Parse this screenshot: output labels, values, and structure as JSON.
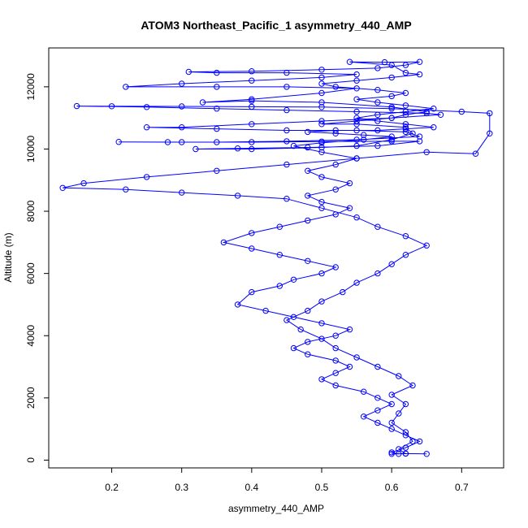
{
  "chart_data": {
    "type": "line",
    "title": "ATOM3 Northeast_Pacific_1 asymmetry_440_AMP",
    "xlabel": "asymmetry_440_AMP",
    "ylabel": "Altitude (m)",
    "xlim": [
      0.11,
      0.76
    ],
    "ylim": [
      -250,
      13250
    ],
    "xticks": [
      0.2,
      0.3,
      0.4,
      0.5,
      0.6,
      0.7
    ],
    "xtick_labels": [
      "0.2",
      "0.3",
      "0.4",
      "0.5",
      "0.6",
      "0.7"
    ],
    "yticks": [
      0,
      2000,
      4000,
      6000,
      8000,
      10000,
      12000
    ],
    "ytick_labels": [
      "0",
      "2000",
      "4000",
      "6000",
      "8000",
      "10000",
      "12000"
    ],
    "grid": false,
    "legend": "none",
    "markers": "open circles connected by lines",
    "color": "#0000ff",
    "series": [
      {
        "values": [
          [
            0.6,
            200
          ],
          [
            0.62,
            210
          ],
          [
            0.61,
            350
          ],
          [
            0.63,
            600
          ],
          [
            0.62,
            900
          ],
          [
            0.6,
            1200
          ],
          [
            0.61,
            1500
          ],
          [
            0.62,
            1800
          ],
          [
            0.6,
            2100
          ],
          [
            0.63,
            2400
          ],
          [
            0.61,
            2700
          ],
          [
            0.58,
            3000
          ],
          [
            0.55,
            3300
          ],
          [
            0.52,
            3600
          ],
          [
            0.5,
            3900
          ],
          [
            0.47,
            4200
          ],
          [
            0.45,
            4500
          ],
          [
            0.48,
            4800
          ],
          [
            0.5,
            5100
          ],
          [
            0.53,
            5400
          ],
          [
            0.55,
            5700
          ],
          [
            0.58,
            6000
          ],
          [
            0.6,
            6300
          ],
          [
            0.62,
            6600
          ],
          [
            0.65,
            6900
          ],
          [
            0.62,
            7200
          ],
          [
            0.58,
            7500
          ],
          [
            0.55,
            7800
          ],
          [
            0.5,
            8100
          ],
          [
            0.45,
            8400
          ],
          [
            0.38,
            8500
          ],
          [
            0.3,
            8600
          ],
          [
            0.22,
            8700
          ],
          [
            0.13,
            8750
          ],
          [
            0.16,
            8900
          ],
          [
            0.25,
            9100
          ],
          [
            0.35,
            9300
          ],
          [
            0.45,
            9500
          ],
          [
            0.55,
            9700
          ],
          [
            0.65,
            9900
          ],
          [
            0.72,
            9850
          ],
          [
            0.74,
            10500
          ],
          [
            0.74,
            11150
          ],
          [
            0.7,
            11200
          ],
          [
            0.6,
            11300
          ],
          [
            0.5,
            11350
          ],
          [
            0.4,
            11360
          ],
          [
            0.3,
            11370
          ],
          [
            0.2,
            11375
          ],
          [
            0.15,
            11380
          ],
          [
            0.25,
            11350
          ],
          [
            0.35,
            11300
          ],
          [
            0.45,
            11250
          ],
          [
            0.55,
            11200
          ],
          [
            0.65,
            11150
          ],
          [
            0.67,
            11100
          ],
          [
            0.6,
            11000
          ],
          [
            0.5,
            10900
          ],
          [
            0.4,
            10800
          ],
          [
            0.3,
            10700
          ],
          [
            0.25,
            10700
          ],
          [
            0.35,
            10650
          ],
          [
            0.45,
            10600
          ],
          [
            0.55,
            10600
          ],
          [
            0.62,
            10550
          ],
          [
            0.64,
            10400
          ],
          [
            0.55,
            10300
          ],
          [
            0.45,
            10250
          ],
          [
            0.35,
            10220
          ],
          [
            0.28,
            10220
          ],
          [
            0.21,
            10230
          ],
          [
            0.3,
            10220
          ],
          [
            0.4,
            10220
          ],
          [
            0.5,
            10240
          ],
          [
            0.6,
            10250
          ],
          [
            0.64,
            10250
          ],
          [
            0.58,
            10100
          ],
          [
            0.48,
            10050
          ],
          [
            0.38,
            10020
          ],
          [
            0.32,
            10000
          ],
          [
            0.4,
            10000
          ],
          [
            0.5,
            10050
          ],
          [
            0.55,
            10100
          ],
          [
            0.6,
            10300
          ],
          [
            0.63,
            10500
          ],
          [
            0.62,
            10700
          ],
          [
            0.55,
            10800
          ],
          [
            0.5,
            10800
          ],
          [
            0.55,
            10900
          ],
          [
            0.6,
            11000
          ],
          [
            0.62,
            11100
          ],
          [
            0.65,
            11200
          ],
          [
            0.6,
            11350
          ],
          [
            0.5,
            11500
          ],
          [
            0.4,
            11550
          ],
          [
            0.33,
            11500
          ],
          [
            0.4,
            11600
          ],
          [
            0.5,
            11800
          ],
          [
            0.55,
            11950
          ],
          [
            0.45,
            12000
          ],
          [
            0.35,
            12000
          ],
          [
            0.22,
            12000
          ],
          [
            0.3,
            12100
          ],
          [
            0.4,
            12200
          ],
          [
            0.5,
            12300
          ],
          [
            0.55,
            12400
          ],
          [
            0.45,
            12450
          ],
          [
            0.35,
            12450
          ],
          [
            0.31,
            12480
          ],
          [
            0.4,
            12500
          ],
          [
            0.5,
            12550
          ],
          [
            0.58,
            12600
          ],
          [
            0.62,
            12700
          ],
          [
            0.64,
            12800
          ],
          [
            0.59,
            12790
          ],
          [
            0.54,
            12800
          ],
          [
            0.6,
            12700
          ],
          [
            0.62,
            12450
          ],
          [
            0.64,
            12400
          ],
          [
            0.6,
            12300
          ],
          [
            0.55,
            12200
          ],
          [
            0.5,
            12100
          ],
          [
            0.52,
            12000
          ],
          [
            0.58,
            11900
          ],
          [
            0.62,
            11800
          ],
          [
            0.6,
            11700
          ],
          [
            0.55,
            11600
          ],
          [
            0.58,
            11500
          ],
          [
            0.62,
            11400
          ],
          [
            0.66,
            11300
          ],
          [
            0.62,
            11200
          ],
          [
            0.58,
            11100
          ],
          [
            0.55,
            11000
          ],
          [
            0.58,
            10900
          ],
          [
            0.62,
            10800
          ],
          [
            0.66,
            10700
          ],
          [
            0.62,
            10650
          ],
          [
            0.58,
            10600
          ],
          [
            0.52,
            10600
          ],
          [
            0.48,
            10550
          ],
          [
            0.52,
            10500
          ],
          [
            0.56,
            10450
          ],
          [
            0.6,
            10400
          ],
          [
            0.56,
            10300
          ],
          [
            0.5,
            10200
          ],
          [
            0.46,
            10100
          ],
          [
            0.5,
            9900
          ],
          [
            0.55,
            9700
          ],
          [
            0.52,
            9500
          ],
          [
            0.48,
            9300
          ],
          [
            0.5,
            9100
          ],
          [
            0.54,
            8900
          ],
          [
            0.52,
            8700
          ],
          [
            0.48,
            8500
          ],
          [
            0.5,
            8300
          ],
          [
            0.54,
            8100
          ],
          [
            0.52,
            7900
          ],
          [
            0.48,
            7700
          ],
          [
            0.44,
            7500
          ],
          [
            0.4,
            7300
          ],
          [
            0.36,
            7000
          ],
          [
            0.4,
            6800
          ],
          [
            0.44,
            6600
          ],
          [
            0.48,
            6400
          ],
          [
            0.52,
            6200
          ],
          [
            0.5,
            6000
          ],
          [
            0.46,
            5800
          ],
          [
            0.44,
            5600
          ],
          [
            0.4,
            5400
          ],
          [
            0.38,
            5000
          ],
          [
            0.42,
            4800
          ],
          [
            0.46,
            4600
          ],
          [
            0.5,
            4400
          ],
          [
            0.54,
            4200
          ],
          [
            0.52,
            4000
          ],
          [
            0.48,
            3800
          ],
          [
            0.46,
            3600
          ],
          [
            0.48,
            3400
          ],
          [
            0.52,
            3200
          ],
          [
            0.54,
            3000
          ],
          [
            0.52,
            2800
          ],
          [
            0.5,
            2600
          ],
          [
            0.52,
            2400
          ],
          [
            0.56,
            2200
          ],
          [
            0.58,
            2000
          ],
          [
            0.6,
            1800
          ],
          [
            0.58,
            1600
          ],
          [
            0.56,
            1400
          ],
          [
            0.58,
            1200
          ],
          [
            0.6,
            1000
          ],
          [
            0.62,
            800
          ],
          [
            0.64,
            600
          ],
          [
            0.62,
            400
          ],
          [
            0.6,
            250
          ],
          [
            0.61,
            200
          ],
          [
            0.62,
            210
          ],
          [
            0.65,
            200
          ]
        ]
      }
    ]
  }
}
